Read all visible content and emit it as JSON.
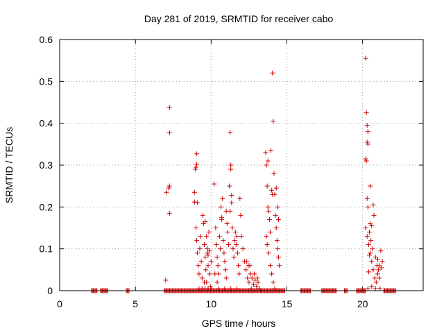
{
  "chart_data": {
    "type": "scatter",
    "title": "Day 281 of 2019, SRMTID for receiver cabo",
    "xlabel": "GPS time / hours",
    "ylabel": "SRMTID / TECUs",
    "xlim": [
      0,
      24
    ],
    "ylim": [
      0,
      0.6
    ],
    "xticks": [
      0,
      5,
      10,
      15,
      20
    ],
    "yticks": [
      0,
      0.1,
      0.2,
      0.3,
      0.4,
      0.5,
      0.6
    ],
    "xtick_labels": [
      "0",
      "5",
      "10",
      "15",
      "20"
    ],
    "ytick_labels": [
      "0",
      "0.1",
      "0.2",
      "0.3",
      "0.4",
      "0.5",
      "0.6"
    ],
    "grid": true,
    "marker": "+",
    "marker_color": "#cc0000",
    "series": [
      {
        "name": "SRMTID",
        "points": [
          [
            7.0,
            0.025
          ],
          [
            7.05,
            0.235
          ],
          [
            7.2,
            0.245
          ],
          [
            7.25,
            0.25
          ],
          [
            7.25,
            0.438
          ],
          [
            7.25,
            0.377
          ],
          [
            7.25,
            0.185
          ],
          [
            8.9,
            0.235
          ],
          [
            8.9,
            0.212
          ],
          [
            8.95,
            0.29
          ],
          [
            9.0,
            0.295
          ],
          [
            9.05,
            0.327
          ],
          [
            9.05,
            0.302
          ],
          [
            9.1,
            0.21
          ],
          [
            9.0,
            0.15
          ],
          [
            9.05,
            0.12
          ],
          [
            9.1,
            0.09
          ],
          [
            9.15,
            0.06
          ],
          [
            9.2,
            0.04
          ],
          [
            9.25,
            0.1
          ],
          [
            9.3,
            0.13
          ],
          [
            9.35,
            0.07
          ],
          [
            9.4,
            0.03
          ],
          [
            9.45,
            0.18
          ],
          [
            9.5,
            0.16
          ],
          [
            9.55,
            0.11
          ],
          [
            9.6,
            0.08
          ],
          [
            9.65,
            0.05
          ],
          [
            9.7,
            0.02
          ],
          [
            9.75,
            0.09
          ],
          [
            9.8,
            0.06
          ],
          [
            9.85,
            0.14
          ],
          [
            9.9,
            0.04
          ],
          [
            9.95,
            0.01
          ],
          [
            10.0,
            0.07
          ],
          [
            9.2,
            0.005
          ],
          [
            9.4,
            0.005
          ],
          [
            9.6,
            0.005
          ],
          [
            9.8,
            0.005
          ],
          [
            10.0,
            0.005
          ],
          [
            9.6,
            0.165
          ],
          [
            9.7,
            0.13
          ],
          [
            9.75,
            0.1
          ],
          [
            9.8,
            0.085
          ],
          [
            9.9,
            0.095
          ],
          [
            9.55,
            0.02
          ],
          [
            10.2,
            0.255
          ],
          [
            10.3,
            0.15
          ],
          [
            10.35,
            0.11
          ],
          [
            10.4,
            0.08
          ],
          [
            10.45,
            0.06
          ],
          [
            10.5,
            0.04
          ],
          [
            10.55,
            0.13
          ],
          [
            10.6,
            0.1
          ],
          [
            10.65,
            0.2
          ],
          [
            10.7,
            0.17
          ],
          [
            10.75,
            0.22
          ],
          [
            10.8,
            0.12
          ],
          [
            10.85,
            0.09
          ],
          [
            10.9,
            0.07
          ],
          [
            10.95,
            0.05
          ],
          [
            11.0,
            0.03
          ],
          [
            11.05,
            0.16
          ],
          [
            11.1,
            0.14
          ],
          [
            11.15,
            0.11
          ],
          [
            11.2,
            0.25
          ],
          [
            11.25,
            0.19
          ],
          [
            11.3,
            0.3
          ],
          [
            11.3,
            0.29
          ],
          [
            11.35,
            0.21
          ],
          [
            11.4,
            0.15
          ],
          [
            11.45,
            0.1
          ],
          [
            11.5,
            0.08
          ],
          [
            11.55,
            0.12
          ],
          [
            11.6,
            0.14
          ],
          [
            11.65,
            0.11
          ],
          [
            11.7,
            0.13
          ],
          [
            11.75,
            0.09
          ],
          [
            11.8,
            0.06
          ],
          [
            11.85,
            0.04
          ],
          [
            11.9,
            0.22
          ],
          [
            11.95,
            0.18
          ],
          [
            12.0,
            0.13
          ],
          [
            10.5,
            0.005
          ],
          [
            10.9,
            0.005
          ],
          [
            11.3,
            0.005
          ],
          [
            11.7,
            0.005
          ],
          [
            11.25,
            0.378
          ],
          [
            11.35,
            0.228
          ],
          [
            10.7,
            0.175
          ],
          [
            11.0,
            0.19
          ],
          [
            10.4,
            0.02
          ],
          [
            10.25,
            0.04
          ],
          [
            12.1,
            0.1
          ],
          [
            12.2,
            0.07
          ],
          [
            12.3,
            0.05
          ],
          [
            12.4,
            0.03
          ],
          [
            12.5,
            0.02
          ],
          [
            12.55,
            0.06
          ],
          [
            12.6,
            0.04
          ],
          [
            12.7,
            0.03
          ],
          [
            12.8,
            0.015
          ],
          [
            12.9,
            0.025
          ],
          [
            13.0,
            0.01
          ],
          [
            13.1,
            0.02
          ],
          [
            13.2,
            0.005
          ],
          [
            12.35,
            0.07
          ],
          [
            12.45,
            0.06
          ],
          [
            12.65,
            0.005
          ],
          [
            12.85,
            0.04
          ],
          [
            13.05,
            0.03
          ],
          [
            13.6,
            0.33
          ],
          [
            13.65,
            0.3
          ],
          [
            13.7,
            0.25
          ],
          [
            13.75,
            0.2
          ],
          [
            13.8,
            0.19
          ],
          [
            13.85,
            0.17
          ],
          [
            13.9,
            0.14
          ],
          [
            13.95,
            0.335
          ],
          [
            14.0,
            0.24
          ],
          [
            14.05,
            0.52
          ],
          [
            14.1,
            0.405
          ],
          [
            14.15,
            0.28
          ],
          [
            14.2,
            0.23
          ],
          [
            14.25,
            0.18
          ],
          [
            14.3,
            0.15
          ],
          [
            14.35,
            0.12
          ],
          [
            14.4,
            0.1
          ],
          [
            14.45,
            0.08
          ],
          [
            14.5,
            0.06
          ],
          [
            13.7,
            0.11
          ],
          [
            13.8,
            0.09
          ],
          [
            13.9,
            0.06
          ],
          [
            14.0,
            0.04
          ],
          [
            14.1,
            0.02
          ],
          [
            14.2,
            0.005
          ],
          [
            13.75,
            0.31
          ],
          [
            14.3,
            0.245
          ],
          [
            14.4,
            0.2
          ],
          [
            14.45,
            0.17
          ],
          [
            14.05,
            0.23
          ],
          [
            13.65,
            0.13
          ],
          [
            20.2,
            0.555
          ],
          [
            20.25,
            0.425
          ],
          [
            20.3,
            0.395
          ],
          [
            20.35,
            0.38
          ],
          [
            20.3,
            0.355
          ],
          [
            20.35,
            0.35
          ],
          [
            20.2,
            0.315
          ],
          [
            20.25,
            0.31
          ],
          [
            20.3,
            0.22
          ],
          [
            20.35,
            0.2
          ],
          [
            20.5,
            0.25
          ],
          [
            20.7,
            0.205
          ],
          [
            20.75,
            0.18
          ],
          [
            20.2,
            0.15
          ],
          [
            20.3,
            0.13
          ],
          [
            20.4,
            0.11
          ],
          [
            20.5,
            0.09
          ],
          [
            20.6,
            0.07
          ],
          [
            20.7,
            0.05
          ],
          [
            20.8,
            0.03
          ],
          [
            20.9,
            0.02
          ],
          [
            21.0,
            0.04
          ],
          [
            21.1,
            0.06
          ],
          [
            21.2,
            0.095
          ],
          [
            21.3,
            0.07
          ],
          [
            21.1,
            0.03
          ],
          [
            20.45,
            0.14
          ],
          [
            20.55,
            0.12
          ],
          [
            20.65,
            0.1
          ],
          [
            20.85,
            0.08
          ],
          [
            20.95,
            0.06
          ],
          [
            21.05,
            0.05
          ],
          [
            20.35,
            0.005
          ],
          [
            20.6,
            0.01
          ],
          [
            20.85,
            0.005
          ],
          [
            21.15,
            0.005
          ],
          [
            20.5,
            0.16
          ],
          [
            20.6,
            0.155
          ],
          [
            20.4,
            0.045
          ],
          [
            20.45,
            0.085
          ],
          [
            21.25,
            0.055
          ],
          [
            21.0,
            0.075
          ]
        ]
      }
    ],
    "zero_runs_hours": [
      [
        2.1,
        2.5
      ],
      [
        2.7,
        3.2
      ],
      [
        4.4,
        4.6
      ],
      [
        6.9,
        9.3
      ],
      [
        9.3,
        13.3
      ],
      [
        13.3,
        14.9
      ],
      [
        15.9,
        16.6
      ],
      [
        17.3,
        18.3
      ],
      [
        18.8,
        19.0
      ],
      [
        19.6,
        20.2
      ],
      [
        21.4,
        22.2
      ]
    ]
  }
}
